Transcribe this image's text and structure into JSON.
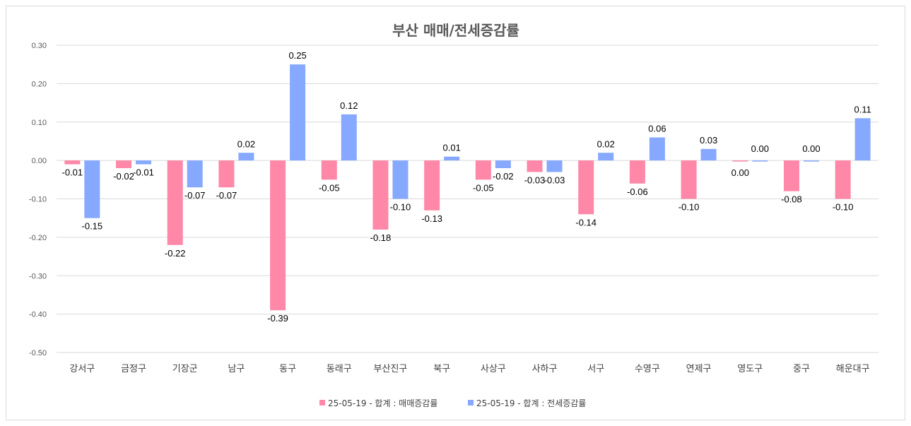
{
  "chart_data": {
    "type": "bar",
    "title": "부산 매매/전세증감률",
    "categories": [
      "강서구",
      "금정구",
      "기장군",
      "남구",
      "동구",
      "동래구",
      "부산진구",
      "북구",
      "사상구",
      "사하구",
      "서구",
      "수영구",
      "연제구",
      "영도구",
      "중구",
      "해운대구"
    ],
    "series": [
      {
        "name": "25-05-19 - 합계 : 매매증감률",
        "color": "#ff88a8",
        "values": [
          -0.01,
          -0.02,
          -0.22,
          -0.07,
          -0.39,
          -0.05,
          -0.18,
          -0.13,
          -0.05,
          -0.03,
          -0.14,
          -0.06,
          -0.1,
          0.0,
          -0.08,
          -0.1
        ],
        "labels": [
          "-0.01",
          "-0.02",
          "-0.22",
          "-0.07",
          "-0.39",
          "-0.05",
          "-0.18",
          "-0.13",
          "-0.05",
          "-0.03",
          "-0.14",
          "-0.06",
          "-0.10",
          "0.00",
          "-0.08",
          "-0.10"
        ]
      },
      {
        "name": "25-05-19 - 합계 : 전세증감률",
        "color": "#86a8ff",
        "values": [
          -0.15,
          -0.01,
          -0.07,
          0.02,
          0.25,
          0.12,
          -0.1,
          0.01,
          -0.02,
          -0.03,
          0.02,
          0.06,
          0.03,
          0.0,
          0.0,
          0.11
        ],
        "labels": [
          "-0.15",
          "-0.01",
          "-0.07",
          "0.02",
          "0.25",
          "0.12",
          "-0.10",
          "0.01",
          "-0.02",
          "-0.03",
          "0.02",
          "0.06",
          "0.03",
          "0.00",
          "0.00",
          "0.11"
        ]
      }
    ],
    "ylim": [
      -0.5,
      0.3
    ],
    "yticks": [
      "0.30",
      "0.20",
      "0.10",
      "0.00",
      "-0.10",
      "-0.20",
      "-0.30",
      "-0.40",
      "-0.50"
    ],
    "grid": true,
    "legend_position": "bottom"
  }
}
